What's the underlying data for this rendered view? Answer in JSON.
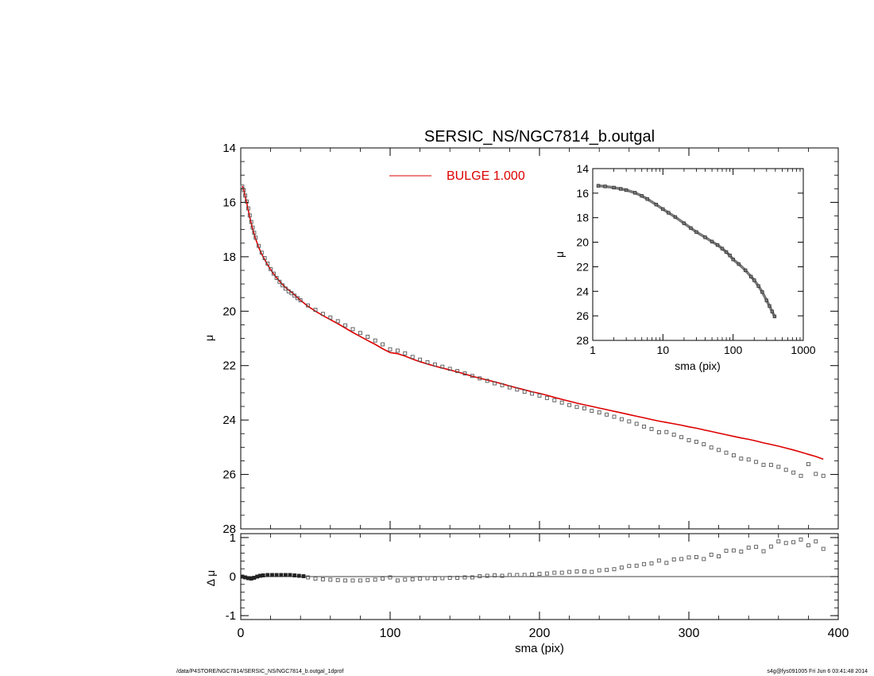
{
  "title": "SERSIC_NS/NGC7814_b.outgal",
  "footer": {
    "left": "/data/P4STORE/NGC7814/SERSIC_NS/NGC7814_b.outgal_1dprof",
    "right": "s4g@fys091005  Fri Jun  6 03:41:48 2014"
  },
  "colors": {
    "model": "#dd0000",
    "data": "#555555",
    "axis": "#000000"
  },
  "chart_data": [
    {
      "id": "main",
      "type": "scatter",
      "xlabel": "sma (pix)",
      "ylabel": "μ",
      "xlim": [
        0,
        400
      ],
      "ylim": [
        28,
        14
      ],
      "xticks": [
        0,
        100,
        200,
        300,
        400
      ],
      "yticks": [
        14,
        16,
        18,
        20,
        22,
        24,
        26,
        28
      ],
      "legend": {
        "label": "BULGE  1.000",
        "placement": "top-center"
      },
      "series": [
        {
          "role": "data",
          "x": [
            1,
            2,
            3,
            4,
            5,
            6,
            7,
            8,
            9,
            10,
            12,
            14,
            16,
            18,
            20,
            22,
            24,
            26,
            28,
            30,
            32,
            34,
            36,
            38,
            40,
            45,
            50,
            55,
            60,
            65,
            70,
            75,
            80,
            85,
            90,
            95,
            100,
            105,
            110,
            115,
            120,
            125,
            130,
            135,
            140,
            145,
            150,
            155,
            160,
            165,
            170,
            175,
            180,
            185,
            190,
            195,
            200,
            205,
            210,
            215,
            220,
            225,
            230,
            235,
            240,
            245,
            250,
            255,
            260,
            265,
            270,
            275,
            280,
            285,
            290,
            295,
            300,
            305,
            310,
            315,
            320,
            325,
            330,
            335,
            340,
            345,
            350,
            355,
            360,
            365,
            370,
            375,
            380,
            385,
            390
          ],
          "y": [
            15.42,
            15.55,
            15.75,
            15.97,
            16.22,
            16.48,
            16.72,
            16.93,
            17.12,
            17.3,
            17.6,
            17.85,
            18.05,
            18.25,
            18.45,
            18.62,
            18.78,
            18.92,
            19.05,
            19.17,
            19.27,
            19.34,
            19.43,
            19.52,
            19.6,
            19.79,
            19.95,
            20.1,
            20.23,
            20.37,
            20.52,
            20.66,
            20.8,
            20.94,
            21.08,
            21.22,
            21.4,
            21.45,
            21.55,
            21.68,
            21.78,
            21.88,
            21.96,
            22.04,
            22.12,
            22.2,
            22.29,
            22.38,
            22.47,
            22.56,
            22.65,
            22.72,
            22.8,
            22.88,
            22.96,
            23.03,
            23.1,
            23.19,
            23.27,
            23.36,
            23.45,
            23.52,
            23.57,
            23.66,
            23.72,
            23.8,
            23.88,
            23.97,
            24.05,
            24.14,
            24.24,
            24.33,
            24.45,
            24.44,
            24.54,
            24.63,
            24.74,
            24.8,
            24.89,
            25.01,
            25.1,
            25.2,
            25.3,
            25.42,
            25.45,
            25.54,
            25.65,
            25.65,
            25.72,
            25.83,
            25.93,
            26.05,
            25.62,
            25.98,
            26.05
          ]
        },
        {
          "role": "model",
          "name": "BULGE  1.000",
          "x": [
            1,
            2,
            3,
            4,
            5,
            6,
            7,
            8,
            9,
            10,
            12,
            14,
            16,
            18,
            20,
            22,
            24,
            26,
            28,
            30,
            32,
            34,
            36,
            38,
            40,
            45,
            50,
            55,
            60,
            65,
            70,
            75,
            80,
            85,
            90,
            95,
            100,
            105,
            110,
            115,
            120,
            125,
            130,
            135,
            140,
            145,
            150,
            155,
            160,
            165,
            170,
            175,
            180,
            185,
            190,
            195,
            200,
            205,
            210,
            215,
            220,
            225,
            230,
            235,
            240,
            245,
            250,
            255,
            260,
            265,
            270,
            275,
            280,
            285,
            290,
            295,
            300,
            305,
            310,
            315,
            320,
            325,
            330,
            335,
            340,
            345,
            350,
            355,
            360,
            365,
            370,
            375,
            380,
            385,
            390
          ],
          "y": [
            15.4,
            15.55,
            15.78,
            16.02,
            16.28,
            16.54,
            16.77,
            16.98,
            17.17,
            17.35,
            17.65,
            17.9,
            18.1,
            18.3,
            18.47,
            18.63,
            18.77,
            18.9,
            19.02,
            19.13,
            19.22,
            19.3,
            19.4,
            19.5,
            19.6,
            19.82,
            20.0,
            20.16,
            20.31,
            20.46,
            20.62,
            20.78,
            20.93,
            21.08,
            21.22,
            21.38,
            21.52,
            21.56,
            21.65,
            21.76,
            21.86,
            21.94,
            22.02,
            22.09,
            22.16,
            22.23,
            22.31,
            22.39,
            22.46,
            22.53,
            22.6,
            22.67,
            22.75,
            22.82,
            22.89,
            22.96,
            23.02,
            23.09,
            23.17,
            23.24,
            23.31,
            23.38,
            23.44,
            23.5,
            23.56,
            23.62,
            23.68,
            23.74,
            23.8,
            23.86,
            23.92,
            23.98,
            24.04,
            24.09,
            24.14,
            24.19,
            24.25,
            24.3,
            24.36,
            24.42,
            24.48,
            24.54,
            24.6,
            24.66,
            24.71,
            24.77,
            24.84,
            24.9,
            24.96,
            25.03,
            25.1,
            25.18,
            25.26,
            25.34,
            25.44
          ]
        }
      ]
    },
    {
      "id": "inset",
      "type": "scatter",
      "xlabel": "sma (pix)",
      "ylabel": "μ",
      "xscale": "log",
      "xlim": [
        1,
        1000
      ],
      "ylim": [
        28,
        14
      ],
      "xticks": [
        1,
        10,
        100,
        1000
      ],
      "xtick_labels": [
        "1",
        "10",
        "100",
        "1000"
      ],
      "yticks": [
        14,
        16,
        18,
        20,
        22,
        24,
        26,
        28
      ],
      "series": [
        {
          "role": "data",
          "x": [
            1.2,
            1.5,
            2,
            2.5,
            3,
            4,
            5,
            6,
            8,
            10,
            12,
            15,
            20,
            25,
            30,
            40,
            50,
            60,
            70,
            80,
            90,
            100,
            120,
            150,
            180,
            200,
            230,
            260,
            300,
            330,
            360,
            390
          ],
          "y": [
            15.4,
            15.45,
            15.55,
            15.65,
            15.75,
            15.97,
            16.22,
            16.48,
            16.93,
            17.3,
            17.6,
            17.95,
            18.45,
            18.85,
            19.17,
            19.6,
            19.95,
            20.23,
            20.52,
            20.8,
            21.08,
            21.4,
            21.78,
            22.29,
            22.8,
            23.1,
            23.57,
            24.05,
            24.74,
            25.2,
            25.65,
            26.05
          ]
        }
      ]
    },
    {
      "id": "residual",
      "type": "scatter",
      "xlabel": "sma (pix)",
      "ylabel": "Δ μ",
      "xlim": [
        0,
        400
      ],
      "ylim": [
        -1.1,
        1.1
      ],
      "xticks": [
        0,
        100,
        200,
        300,
        400
      ],
      "yticks": [
        1,
        0,
        -1
      ],
      "series": [
        {
          "role": "data",
          "x": [
            1,
            3,
            5,
            7,
            9,
            11,
            13,
            15,
            18,
            21,
            24,
            27,
            30,
            33,
            36,
            39,
            42,
            45,
            50,
            55,
            60,
            65,
            70,
            75,
            80,
            85,
            90,
            95,
            100,
            105,
            110,
            115,
            120,
            125,
            130,
            135,
            140,
            145,
            150,
            155,
            160,
            165,
            170,
            175,
            180,
            185,
            190,
            195,
            200,
            205,
            210,
            215,
            220,
            225,
            230,
            235,
            240,
            245,
            250,
            255,
            260,
            265,
            270,
            275,
            280,
            285,
            290,
            295,
            300,
            305,
            310,
            315,
            320,
            325,
            330,
            335,
            340,
            345,
            350,
            355,
            360,
            365,
            370,
            375,
            380,
            385,
            390
          ],
          "y": [
            0.0,
            -0.02,
            -0.04,
            -0.05,
            -0.03,
            0.0,
            0.02,
            0.03,
            0.04,
            0.04,
            0.04,
            0.04,
            0.04,
            0.04,
            0.03,
            0.02,
            0.01,
            -0.02,
            -0.05,
            -0.07,
            -0.08,
            -0.09,
            -0.1,
            -0.1,
            -0.1,
            -0.09,
            -0.08,
            -0.05,
            -0.02,
            -0.1,
            -0.08,
            -0.07,
            -0.05,
            -0.04,
            -0.05,
            -0.04,
            -0.03,
            -0.03,
            -0.02,
            -0.02,
            0.01,
            0.02,
            0.03,
            0.02,
            0.04,
            0.04,
            0.04,
            0.05,
            0.07,
            0.08,
            0.1,
            0.1,
            0.12,
            0.13,
            0.13,
            0.12,
            0.16,
            0.17,
            0.19,
            0.23,
            0.27,
            0.28,
            0.32,
            0.34,
            0.41,
            0.35,
            0.44,
            0.45,
            0.49,
            0.5,
            0.45,
            0.56,
            0.52,
            0.66,
            0.67,
            0.64,
            0.74,
            0.76,
            0.65,
            0.77,
            0.9,
            0.86,
            0.88,
            0.95,
            0.8,
            0.9,
            0.71
          ]
        }
      ]
    }
  ]
}
